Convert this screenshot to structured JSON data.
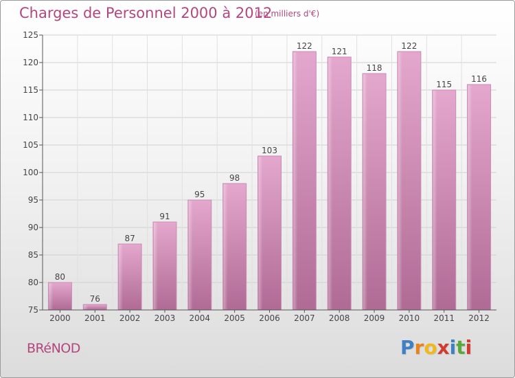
{
  "chart_data": {
    "type": "bar",
    "title": "Charges de Personnel 2000 à 2012",
    "subtitle": "(en milliers d'€)",
    "xlabel": "",
    "ylabel": "",
    "categories": [
      "2000",
      "2001",
      "2002",
      "2003",
      "2004",
      "2005",
      "2006",
      "2007",
      "2008",
      "2009",
      "2010",
      "2011",
      "2012"
    ],
    "values": [
      80,
      76,
      87,
      91,
      95,
      98,
      103,
      122,
      121,
      118,
      122,
      115,
      116
    ],
    "ylim": [
      75,
      125
    ],
    "yticks": [
      75,
      80,
      85,
      90,
      95,
      100,
      105,
      110,
      115,
      120,
      125
    ],
    "grid": true,
    "bar_color": "#c97aa8"
  },
  "footer": {
    "commune": "BRéNOD",
    "logo_letters": [
      "P",
      "r",
      "o",
      "x",
      "i",
      "t",
      "i"
    ],
    "logo_colors": [
      "#3f7fc4",
      "#e8821e",
      "#f0b81c",
      "#d13a2f",
      "#3f7fc4",
      "#59a83c",
      "#d13a2f"
    ]
  }
}
